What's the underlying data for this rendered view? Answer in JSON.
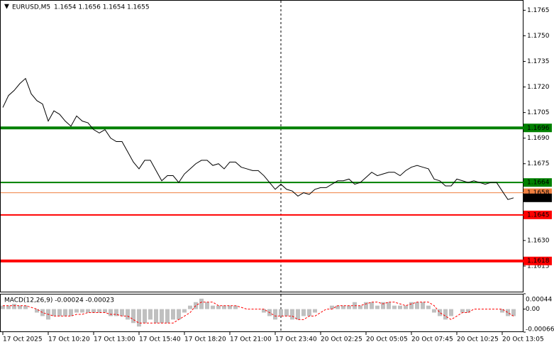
{
  "chart_data": [
    {
      "type": "line",
      "title": "EURUSD,M5",
      "subtitle": "1.1654 1.1656 1.1654 1.1655",
      "xticks": [
        {
          "value": 0,
          "label": "17 Oct 2025"
        },
        {
          "value": 8,
          "label": "17 Oct 10:20"
        },
        {
          "value": 16,
          "label": "17 Oct 13:00"
        },
        {
          "value": 24,
          "label": "17 Oct 15:40"
        },
        {
          "value": 32,
          "label": "17 Oct 18:20"
        },
        {
          "value": 40,
          "label": "17 Oct 21:00"
        },
        {
          "value": 48,
          "label": "17 Oct 23:40"
        },
        {
          "value": 56,
          "label": "20 Oct 02:25"
        },
        {
          "value": 64,
          "label": "20 Oct 05:05"
        },
        {
          "value": 72,
          "label": "20 Oct 07:45"
        },
        {
          "value": 80,
          "label": "20 Oct 10:25"
        },
        {
          "value": 88,
          "label": "20 Oct 13:05"
        }
      ],
      "ylim": [
        1.16,
        1.1771
      ],
      "yticks": [
        1.1765,
        {
          "value": 1.175,
          "label": "1.1750"
        },
        1.1735,
        {
          "value": 1.172,
          "label": "1.1720"
        },
        1.1705,
        {
          "value": 1.169,
          "label": "1.1690"
        },
        1.1675,
        {
          "value": 1.163,
          "label": "1.1630"
        },
        1.1615
      ],
      "series": [
        {
          "color": "#000000",
          "values": [
            1.1708,
            1.1715,
            1.1718,
            1.1722,
            1.1725,
            1.1716,
            1.1712,
            1.171,
            1.17,
            1.1706,
            1.1704,
            1.17,
            1.1697,
            1.1703,
            1.17,
            1.1699,
            1.1695,
            1.1693,
            1.1695,
            1.169,
            1.1688,
            1.1688,
            1.1682,
            1.1676,
            1.1672,
            1.1677,
            1.1677,
            1.1671,
            1.1665,
            1.1668,
            1.1668,
            1.1664,
            1.1669,
            1.1672,
            1.1675,
            1.1677,
            1.1677,
            1.1674,
            1.1675,
            1.1672,
            1.1676,
            1.1676,
            1.1673,
            1.1672,
            1.1671,
            1.1671,
            1.1668,
            1.1664,
            1.166,
            1.1663,
            1.166,
            1.1659,
            1.1656,
            1.1658,
            1.1657,
            1.166,
            1.1661,
            1.1661,
            1.1663,
            1.1665,
            1.1665,
            1.1666,
            1.1663,
            1.1664,
            1.1667,
            1.167,
            1.1668,
            1.1669,
            1.167,
            1.167,
            1.1668,
            1.1671,
            1.1673,
            1.1674,
            1.1673,
            1.1672,
            1.1666,
            1.1665,
            1.1662,
            1.1662,
            1.1666,
            1.1665,
            1.1664,
            1.1665,
            1.1664,
            1.1663,
            1.1664,
            1.1664,
            1.1659,
            1.1654,
            1.1655
          ]
        }
      ],
      "levels": [
        {
          "value": 1.1696,
          "color": "#008000",
          "width": 4
        },
        {
          "value": 1.1664,
          "color": "#008000",
          "width": 2
        },
        {
          "value": 1.1658,
          "color": "#f08040",
          "width": 1
        },
        {
          "value": 1.1655,
          "color": "#000000",
          "width": 0
        },
        {
          "value": 1.1645,
          "color": "#ff0000",
          "width": 2
        },
        {
          "value": 1.1618,
          "color": "#ff0000",
          "width": 4
        }
      ]
    },
    {
      "type": "macd",
      "title": "MACD(12,26,9) -0.00024 -0.00023",
      "ylim": [
        -0.00066,
        0.00044
      ],
      "yticks": [
        0.00044,
        {
          "value": 0,
          "label": "0.00"
        },
        -0.00066
      ],
      "series": [
        {
          "style": "histogram",
          "color": "#c0c0c0",
          "values": [
            0.0001,
            0.0001,
            0.00015,
            0.0001,
            0.0001,
            0,
            -0.0001,
            -0.0002,
            -0.0003,
            -0.0002,
            -0.0002,
            -0.0002,
            -0.0002,
            -0.0001,
            -0.0001,
            -0.0001,
            -0.0001,
            -0.0001,
            -0.0001,
            -0.0002,
            -0.0002,
            -0.0002,
            -0.0003,
            -0.0004,
            -0.0005,
            -0.0004,
            -0.0003,
            -0.0004,
            -0.0004,
            -0.0004,
            -0.0003,
            -0.0003,
            -0.0001,
            0.0001,
            0.0002,
            0.0003,
            0.0002,
            0.0001,
            0.0001,
            0.0001,
            0.0001,
            0.0001,
            0,
            0,
            0,
            0,
            -0.0001,
            -0.0002,
            -0.0003,
            -0.0002,
            -0.0002,
            -0.0003,
            -0.0003,
            -0.0002,
            -0.0002,
            -0.0001,
            0,
            0,
            0.0001,
            0.0001,
            0.0001,
            0.0001,
            0.0002,
            0.0001,
            0.0002,
            0.0002,
            0.0001,
            0.0002,
            0.0002,
            0.0001,
            0.0001,
            0.0001,
            0.0002,
            0.0002,
            0.0002,
            0.0001,
            -0.0001,
            -0.0002,
            -0.0003,
            -0.0002,
            0,
            -0.0001,
            -0.0001,
            0,
            0,
            0,
            0,
            0,
            -0.0001,
            -0.0002,
            -0.0002
          ]
        },
        {
          "style": "dotted",
          "color": "#ff0000",
          "values": [
            0.0001,
            0.0001,
            0.0001,
            0.0001,
            0.0001,
            5e-05,
            0,
            -0.0001,
            -0.00015,
            -0.0002,
            -0.0002,
            -0.0002,
            -0.0002,
            -0.00015,
            -0.00015,
            -0.0001,
            -0.0001,
            -0.0001,
            -0.0001,
            -0.00015,
            -0.00015,
            -0.0002,
            -0.0002,
            -0.0003,
            -0.0004,
            -0.0004,
            -0.0004,
            -0.0004,
            -0.0004,
            -0.0004,
            -0.0004,
            -0.0003,
            -0.0002,
            -0.0001,
            0.0001,
            0.0002,
            0.0002,
            0.0002,
            0.0001,
            0.0001,
            0.0001,
            0.0001,
            5e-05,
            0,
            0,
            0,
            0,
            -0.0001,
            -0.0002,
            -0.0002,
            -0.0002,
            -0.0002,
            -0.0003,
            -0.0003,
            -0.0002,
            -0.0002,
            -0.0001,
            0,
            0,
            0.0001,
            0.0001,
            0.0001,
            0.0001,
            0.0001,
            0.00015,
            0.0002,
            0.0002,
            0.00015,
            0.0002,
            0.0002,
            0.00015,
            0.0001,
            0.00015,
            0.0002,
            0.0002,
            0.0002,
            0.0001,
            -0.0001,
            -0.0002,
            -0.0003,
            -0.0002,
            -0.0001,
            -0.0001,
            0,
            0,
            0,
            0,
            0,
            0,
            -0.0001,
            -0.0002
          ]
        }
      ]
    }
  ]
}
